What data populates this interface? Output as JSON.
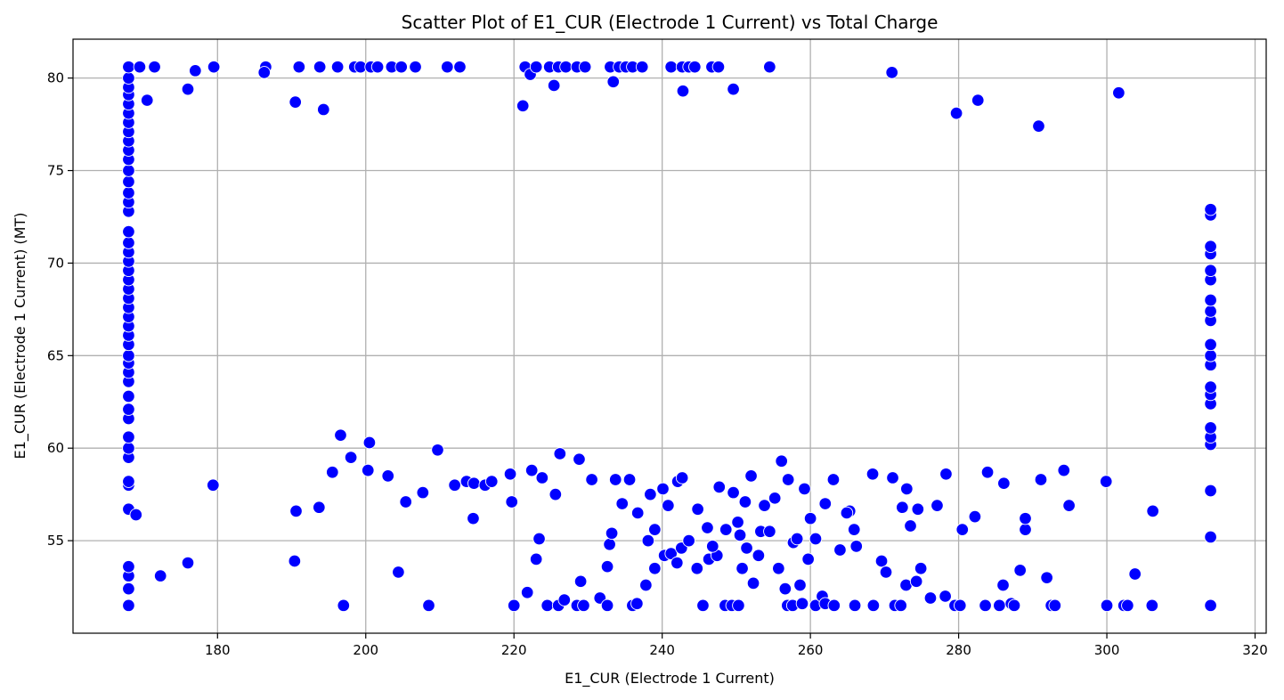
{
  "chart_data": {
    "type": "scatter",
    "title": "Scatter Plot of E1_CUR (Electrode 1 Current) vs Total Charge",
    "xlabel": "E1_CUR (Electrode 1 Current)",
    "ylabel": "E1_CUR (Electrode 1 Current) (MT)",
    "xlim": [
      160.5,
      321.5
    ],
    "ylim": [
      50.0,
      82.1
    ],
    "xticks": [
      180,
      200,
      220,
      240,
      260,
      280,
      300,
      320
    ],
    "yticks": [
      55,
      60,
      65,
      70,
      75,
      80
    ],
    "grid": true,
    "marker_color": "#0000ff",
    "marker_edge_color": "#ffffff",
    "series": [
      {
        "points": [
          [
            168.0,
            51.5
          ],
          [
            168.0,
            52.4
          ],
          [
            168.0,
            53.1
          ],
          [
            168.0,
            53.6
          ],
          [
            168.0,
            56.7
          ],
          [
            168.0,
            58.0
          ],
          [
            168.0,
            58.2
          ],
          [
            168.0,
            59.5
          ],
          [
            168.0,
            60.0
          ],
          [
            168.0,
            60.6
          ],
          [
            168.0,
            61.6
          ],
          [
            168.0,
            62.1
          ],
          [
            168.0,
            62.8
          ],
          [
            168.0,
            63.6
          ],
          [
            168.0,
            64.1
          ],
          [
            168.0,
            64.6
          ],
          [
            168.0,
            65.0
          ],
          [
            168.0,
            65.6
          ],
          [
            168.0,
            66.1
          ],
          [
            168.0,
            66.6
          ],
          [
            168.0,
            67.1
          ],
          [
            168.0,
            67.6
          ],
          [
            168.0,
            68.1
          ],
          [
            168.0,
            68.6
          ],
          [
            168.0,
            69.1
          ],
          [
            168.0,
            69.6
          ],
          [
            168.0,
            70.1
          ],
          [
            168.0,
            70.6
          ],
          [
            168.0,
            71.1
          ],
          [
            168.0,
            71.7
          ],
          [
            168.0,
            72.8
          ],
          [
            168.0,
            73.3
          ],
          [
            168.0,
            73.8
          ],
          [
            168.0,
            74.4
          ],
          [
            168.0,
            75.0
          ],
          [
            168.0,
            75.6
          ],
          [
            168.0,
            76.1
          ],
          [
            168.0,
            76.6
          ],
          [
            168.0,
            77.1
          ],
          [
            168.0,
            77.6
          ],
          [
            168.0,
            78.1
          ],
          [
            168.0,
            78.6
          ],
          [
            168.0,
            79.1
          ],
          [
            168.0,
            79.5
          ],
          [
            168.0,
            80.0
          ],
          [
            168.0,
            80.6
          ],
          [
            314.0,
            51.5
          ],
          [
            314.0,
            55.2
          ],
          [
            314.0,
            57.7
          ],
          [
            314.0,
            60.2
          ],
          [
            314.0,
            60.6
          ],
          [
            314.0,
            61.1
          ],
          [
            314.0,
            62.4
          ],
          [
            314.0,
            62.9
          ],
          [
            314.0,
            63.3
          ],
          [
            314.0,
            64.5
          ],
          [
            314.0,
            65.0
          ],
          [
            314.0,
            65.6
          ],
          [
            314.0,
            66.9
          ],
          [
            314.0,
            67.4
          ],
          [
            314.0,
            68.0
          ],
          [
            314.0,
            69.1
          ],
          [
            314.0,
            69.6
          ],
          [
            314.0,
            70.5
          ],
          [
            314.0,
            70.9
          ],
          [
            314.0,
            72.6
          ],
          [
            314.0,
            72.9
          ],
          [
            169.5,
            80.6
          ],
          [
            171.5,
            80.6
          ],
          [
            177.0,
            80.4
          ],
          [
            179.5,
            80.6
          ],
          [
            186.5,
            80.6
          ],
          [
            186.3,
            80.3
          ],
          [
            191.0,
            80.6
          ],
          [
            193.8,
            80.6
          ],
          [
            196.2,
            80.6
          ],
          [
            198.5,
            80.6
          ],
          [
            199.3,
            80.6
          ],
          [
            200.7,
            80.6
          ],
          [
            201.6,
            80.6
          ],
          [
            203.5,
            80.6
          ],
          [
            204.8,
            80.6
          ],
          [
            206.7,
            80.6
          ],
          [
            211.0,
            80.6
          ],
          [
            212.7,
            80.6
          ],
          [
            221.5,
            80.6
          ],
          [
            222.2,
            80.2
          ],
          [
            223.0,
            80.6
          ],
          [
            224.8,
            80.6
          ],
          [
            226.0,
            80.6
          ],
          [
            227.0,
            80.6
          ],
          [
            228.5,
            80.6
          ],
          [
            229.6,
            80.6
          ],
          [
            233.0,
            80.6
          ],
          [
            234.2,
            80.6
          ],
          [
            235.1,
            80.6
          ],
          [
            236.0,
            80.6
          ],
          [
            237.3,
            80.6
          ],
          [
            241.2,
            80.6
          ],
          [
            242.7,
            80.6
          ],
          [
            243.6,
            80.6
          ],
          [
            244.4,
            80.6
          ],
          [
            246.7,
            80.6
          ],
          [
            247.6,
            80.6
          ],
          [
            254.5,
            80.6
          ],
          [
            271.0,
            80.3
          ],
          [
            170.5,
            78.8
          ],
          [
            176.0,
            79.4
          ],
          [
            190.5,
            78.7
          ],
          [
            194.3,
            78.3
          ],
          [
            221.2,
            78.5
          ],
          [
            233.4,
            79.8
          ],
          [
            225.4,
            79.6
          ],
          [
            242.8,
            79.3
          ],
          [
            249.6,
            79.4
          ],
          [
            279.7,
            78.1
          ],
          [
            282.6,
            78.8
          ],
          [
            301.6,
            79.2
          ],
          [
            290.8,
            77.4
          ],
          [
            168.0,
            51.5
          ],
          [
            176.0,
            53.8
          ],
          [
            172.3,
            53.1
          ],
          [
            190.4,
            53.9
          ],
          [
            204.4,
            53.3
          ],
          [
            208.5,
            51.5
          ],
          [
            197.0,
            51.5
          ],
          [
            220.0,
            51.5
          ],
          [
            221.8,
            52.2
          ],
          [
            223.0,
            54.0
          ],
          [
            223.4,
            55.1
          ],
          [
            224.5,
            51.5
          ],
          [
            226.0,
            51.5
          ],
          [
            226.8,
            51.8
          ],
          [
            228.5,
            51.5
          ],
          [
            229.4,
            51.5
          ],
          [
            229.0,
            52.8
          ],
          [
            231.6,
            51.9
          ],
          [
            232.6,
            51.5
          ],
          [
            232.6,
            53.6
          ],
          [
            232.9,
            54.8
          ],
          [
            233.2,
            55.4
          ],
          [
            236.0,
            51.5
          ],
          [
            236.6,
            51.6
          ],
          [
            237.8,
            52.6
          ],
          [
            239.0,
            53.5
          ],
          [
            240.3,
            54.2
          ],
          [
            241.2,
            54.3
          ],
          [
            242.0,
            53.8
          ],
          [
            242.6,
            54.6
          ],
          [
            244.7,
            53.5
          ],
          [
            245.5,
            51.5
          ],
          [
            246.3,
            54.0
          ],
          [
            247.4,
            54.2
          ],
          [
            248.5,
            51.5
          ],
          [
            249.4,
            51.5
          ],
          [
            250.3,
            51.5
          ],
          [
            250.8,
            53.5
          ],
          [
            252.3,
            52.7
          ],
          [
            253.3,
            55.5
          ],
          [
            253.0,
            54.2
          ],
          [
            255.7,
            53.5
          ],
          [
            256.6,
            52.4
          ],
          [
            256.9,
            51.5
          ],
          [
            257.6,
            51.5
          ],
          [
            258.6,
            52.6
          ],
          [
            258.9,
            51.6
          ],
          [
            259.7,
            54.0
          ],
          [
            260.7,
            51.5
          ],
          [
            261.6,
            52.0
          ],
          [
            262.0,
            51.6
          ],
          [
            263.2,
            51.5
          ],
          [
            264.0,
            54.5
          ],
          [
            265.3,
            56.6
          ],
          [
            266.0,
            51.5
          ],
          [
            268.5,
            51.5
          ],
          [
            269.6,
            53.9
          ],
          [
            270.2,
            53.3
          ],
          [
            271.4,
            51.5
          ],
          [
            272.2,
            51.5
          ],
          [
            272.9,
            52.6
          ],
          [
            273.5,
            55.8
          ],
          [
            274.3,
            52.8
          ],
          [
            274.9,
            53.5
          ],
          [
            276.2,
            51.9
          ],
          [
            278.2,
            52.0
          ],
          [
            279.5,
            51.5
          ],
          [
            280.2,
            51.5
          ],
          [
            283.6,
            51.5
          ],
          [
            285.5,
            51.5
          ],
          [
            286.0,
            52.6
          ],
          [
            287.1,
            51.6
          ],
          [
            287.5,
            51.5
          ],
          [
            288.3,
            53.4
          ],
          [
            289.0,
            55.6
          ],
          [
            289.0,
            56.2
          ],
          [
            291.9,
            53.0
          ],
          [
            292.5,
            51.5
          ],
          [
            293.0,
            51.5
          ],
          [
            300.0,
            51.5
          ],
          [
            302.3,
            51.5
          ],
          [
            302.8,
            51.5
          ],
          [
            303.8,
            53.2
          ],
          [
            306.1,
            51.5
          ],
          [
            169.0,
            56.4
          ],
          [
            179.4,
            58.0
          ],
          [
            190.6,
            56.6
          ],
          [
            193.7,
            56.8
          ],
          [
            195.5,
            58.7
          ],
          [
            196.6,
            60.7
          ],
          [
            198.0,
            59.5
          ],
          [
            200.3,
            58.8
          ],
          [
            200.5,
            60.3
          ],
          [
            203.0,
            58.5
          ],
          [
            205.4,
            57.1
          ],
          [
            207.7,
            57.6
          ],
          [
            209.7,
            59.9
          ],
          [
            212.0,
            58.0
          ],
          [
            213.6,
            58.2
          ],
          [
            214.6,
            58.1
          ],
          [
            214.5,
            56.2
          ],
          [
            216.1,
            58.0
          ],
          [
            217.0,
            58.2
          ],
          [
            219.7,
            57.1
          ],
          [
            219.5,
            58.6
          ],
          [
            222.4,
            58.8
          ],
          [
            223.8,
            58.4
          ],
          [
            225.6,
            57.5
          ],
          [
            226.2,
            59.7
          ],
          [
            228.8,
            59.4
          ],
          [
            230.5,
            58.3
          ],
          [
            233.7,
            58.3
          ],
          [
            234.6,
            57.0
          ],
          [
            235.6,
            58.3
          ],
          [
            236.7,
            56.5
          ],
          [
            238.4,
            57.5
          ],
          [
            238.1,
            55.0
          ],
          [
            239.0,
            55.6
          ],
          [
            240.1,
            57.8
          ],
          [
            240.8,
            56.9
          ],
          [
            242.1,
            58.2
          ],
          [
            242.7,
            58.4
          ],
          [
            243.6,
            55.0
          ],
          [
            244.8,
            56.7
          ],
          [
            246.1,
            55.7
          ],
          [
            246.8,
            54.7
          ],
          [
            247.7,
            57.9
          ],
          [
            248.6,
            55.6
          ],
          [
            249.6,
            57.6
          ],
          [
            250.2,
            56.0
          ],
          [
            250.5,
            55.3
          ],
          [
            251.2,
            57.1
          ],
          [
            251.4,
            54.6
          ],
          [
            252.0,
            58.5
          ],
          [
            253.8,
            56.9
          ],
          [
            254.5,
            55.5
          ],
          [
            255.2,
            57.3
          ],
          [
            256.1,
            59.3
          ],
          [
            257.0,
            58.3
          ],
          [
            257.7,
            54.9
          ],
          [
            258.2,
            55.1
          ],
          [
            259.2,
            57.8
          ],
          [
            260.0,
            56.2
          ],
          [
            260.7,
            55.1
          ],
          [
            262.0,
            57.0
          ],
          [
            263.1,
            58.3
          ],
          [
            264.9,
            56.5
          ],
          [
            265.9,
            55.6
          ],
          [
            266.2,
            54.7
          ],
          [
            268.4,
            58.6
          ],
          [
            271.1,
            58.4
          ],
          [
            272.4,
            56.8
          ],
          [
            273.0,
            57.8
          ],
          [
            274.5,
            56.7
          ],
          [
            277.1,
            56.9
          ],
          [
            278.3,
            58.6
          ],
          [
            280.5,
            55.6
          ],
          [
            282.2,
            56.3
          ],
          [
            283.9,
            58.7
          ],
          [
            286.1,
            58.1
          ],
          [
            291.1,
            58.3
          ],
          [
            294.2,
            58.8
          ],
          [
            294.9,
            56.9
          ],
          [
            299.9,
            58.2
          ],
          [
            306.2,
            56.6
          ]
        ]
      }
    ]
  }
}
